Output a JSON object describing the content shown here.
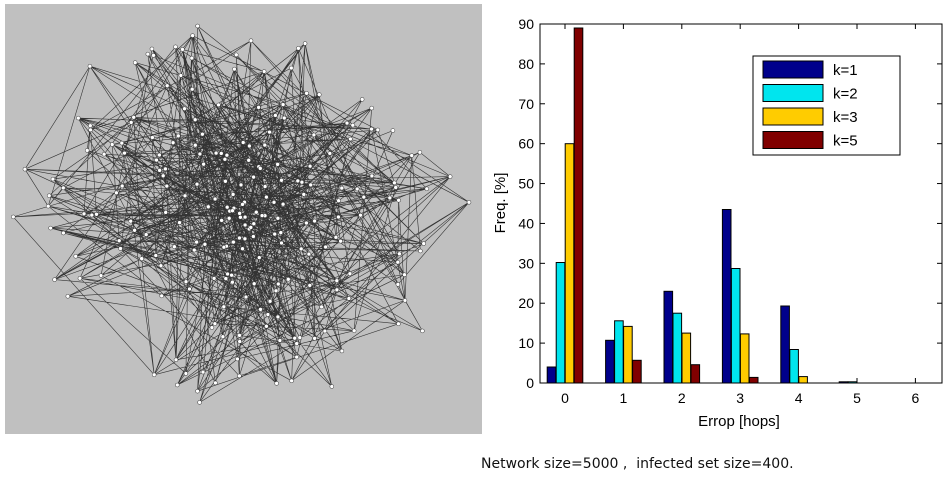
{
  "chart_data": {
    "type": "bar",
    "xlabel": "Errop [hops]",
    "ylabel": "Freq. [%]",
    "categories": [
      "0",
      "1",
      "2",
      "3",
      "4",
      "5",
      "6"
    ],
    "ylim": [
      0,
      90
    ],
    "yticks": [
      0,
      10,
      20,
      30,
      40,
      50,
      60,
      70,
      80,
      90
    ],
    "grid": false,
    "legend_position": "top-right",
    "series": [
      {
        "name": "k=1",
        "color": "#00008b",
        "values": [
          4,
          10.7,
          23,
          43.5,
          19.3,
          0.3,
          0
        ]
      },
      {
        "name": "k=2",
        "color": "#00e5ee",
        "values": [
          30.2,
          15.6,
          17.5,
          28.7,
          8.4,
          0.3,
          0
        ]
      },
      {
        "name": "k=3",
        "color": "#ffcc00",
        "values": [
          60,
          14.2,
          12.5,
          12.3,
          1.6,
          0,
          0
        ]
      },
      {
        "name": "k=5",
        "color": "#800000",
        "values": [
          89,
          5.7,
          4.6,
          1.4,
          0,
          0,
          0
        ]
      }
    ]
  },
  "caption": "Network size=5000 ,  infected set size=400."
}
